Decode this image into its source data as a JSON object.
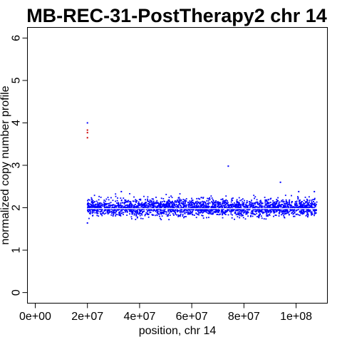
{
  "chart_data": {
    "type": "scatter",
    "title": "MB-REC-31-PostTherapy2 chr 14",
    "xlabel": "position, chr 14",
    "ylabel": "normalized copy number profile",
    "xlim": [
      -3000000,
      112000000
    ],
    "ylim": [
      -0.25,
      6.25
    ],
    "x_ticks": [
      {
        "value": 0,
        "label": "0e+00"
      },
      {
        "value": 20000000,
        "label": "2e+07"
      },
      {
        "value": 40000000,
        "label": "4e+07"
      },
      {
        "value": 60000000,
        "label": "6e+07"
      },
      {
        "value": 80000000,
        "label": "8e+07"
      },
      {
        "value": 100000000,
        "label": "1e+08"
      }
    ],
    "y_ticks": [
      {
        "value": 0,
        "label": "0"
      },
      {
        "value": 1,
        "label": "1"
      },
      {
        "value": 2,
        "label": "2"
      },
      {
        "value": 3,
        "label": "3"
      },
      {
        "value": 4,
        "label": "4"
      },
      {
        "value": 5,
        "label": "5"
      },
      {
        "value": 6,
        "label": "6"
      }
    ],
    "grid": false,
    "colors": {
      "points_main": "#0000ff",
      "points_outlier": "#cc0000",
      "segment": "#ffffff",
      "axis": "#000000"
    },
    "series": [
      {
        "points": [
          [
            20000000,
            3.83
          ],
          [
            20000000,
            3.77
          ],
          [
            20000000,
            3.65
          ],
          [
            20000000,
            4.0
          ],
          [
            74000000,
            2.98
          ],
          [
            94000000,
            2.6
          ],
          [
            20000000,
            1.64
          ],
          [
            33000000,
            2.38
          ],
          [
            101000000,
            2.38
          ],
          [
            107000000,
            2.38
          ]
        ]
      },
      {
        "x_range": [
          20000000,
          108000000
        ],
        "y_center": 2.0,
        "y_spread": 0.28,
        "n_points": 2600
      }
    ],
    "segments": [
      {
        "x_start": 20000000,
        "x_end": 108000000,
        "y": 1.98
      }
    ]
  }
}
